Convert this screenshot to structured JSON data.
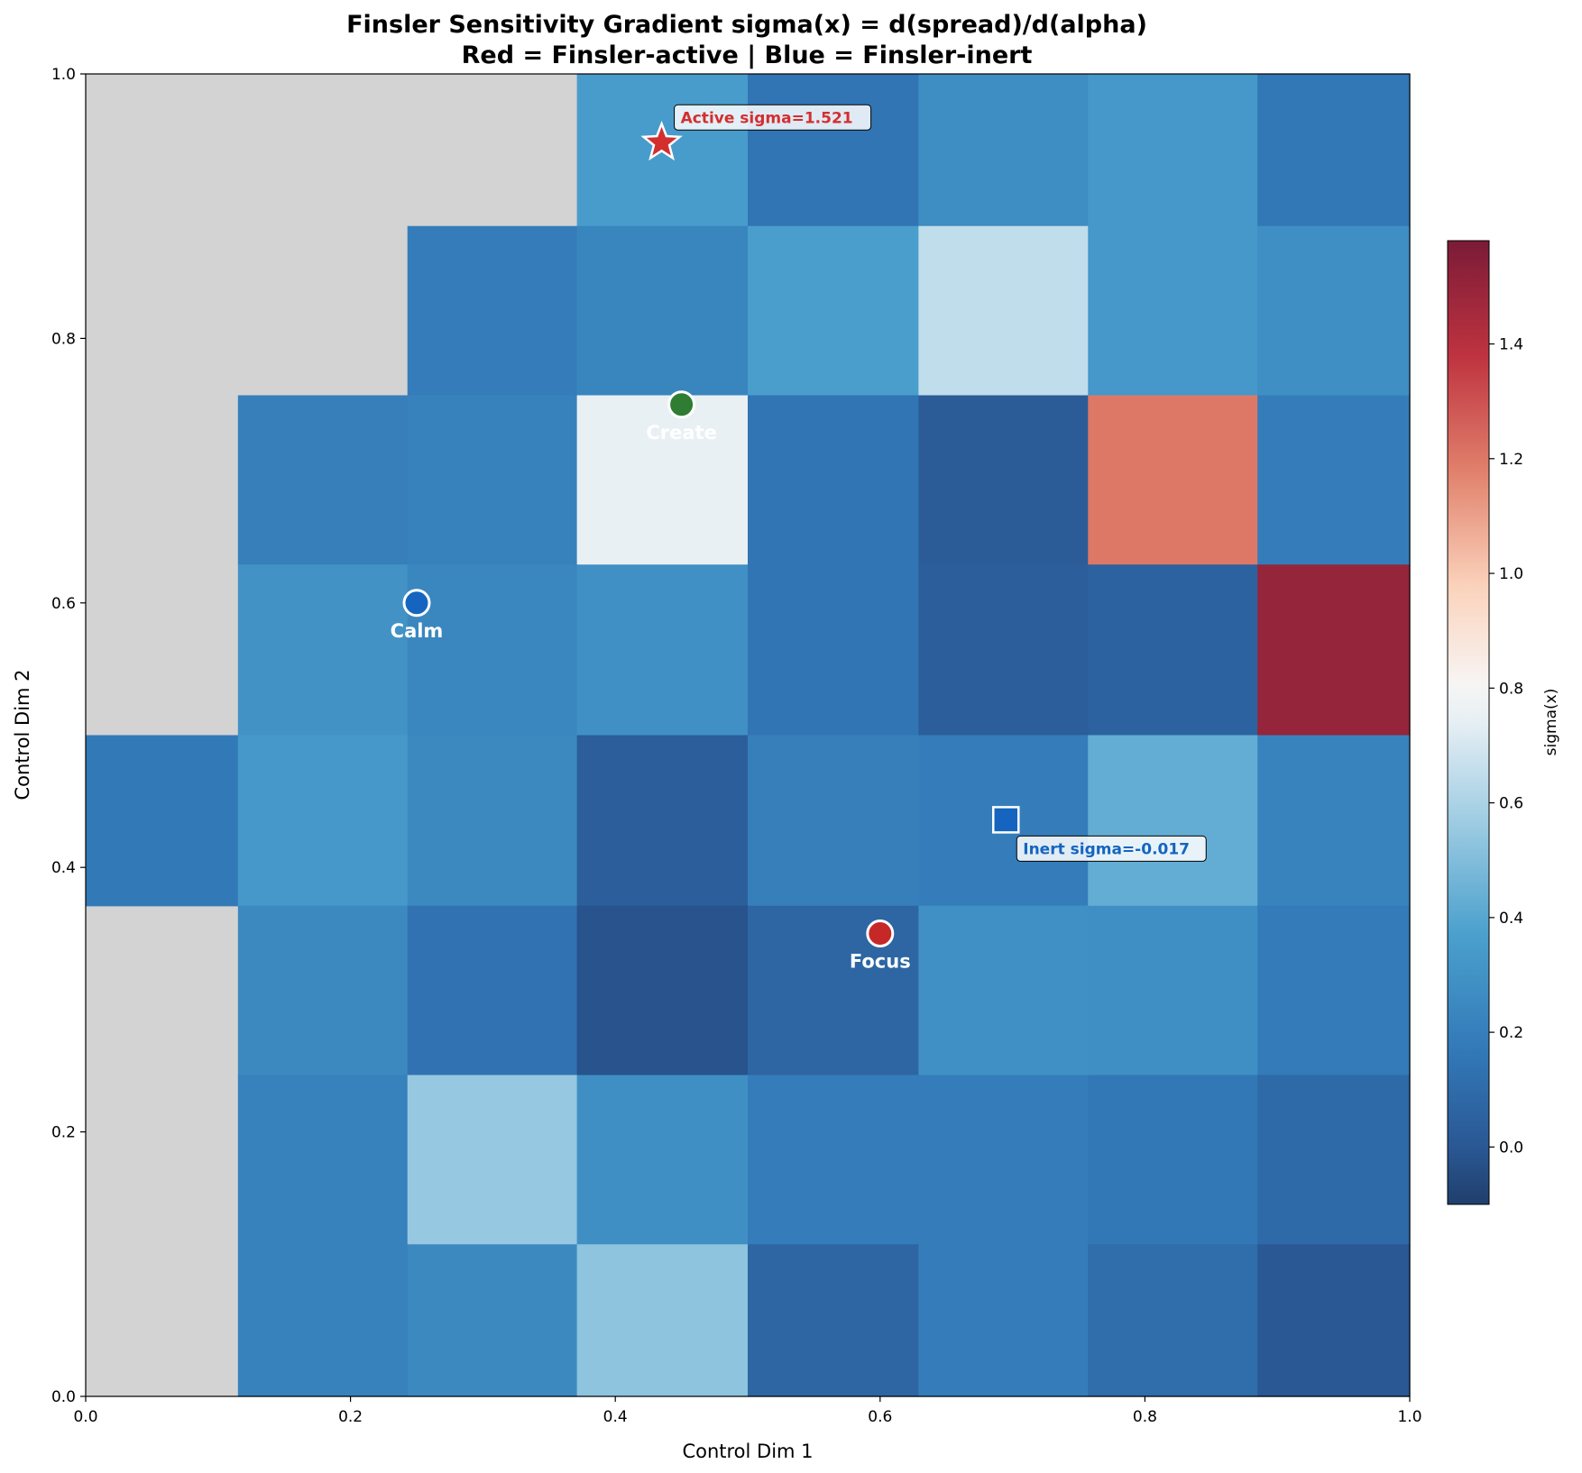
{
  "chart_data": {
    "type": "heatmap",
    "title_line1": "Finsler Sensitivity Gradient sigma(x) = d(spread)/d(alpha)",
    "title_line2": "Red = Finsler-active | Blue = Finsler-inert",
    "xlabel": "Control Dim 1",
    "ylabel": "Control Dim 2",
    "xlim": [
      0.0,
      1.0
    ],
    "ylim": [
      0.0,
      1.0
    ],
    "x_ticks": [
      "0.0",
      "0.2",
      "0.4",
      "0.6",
      "0.8",
      "1.0"
    ],
    "y_ticks": [
      "0.0",
      "0.2",
      "0.4",
      "0.6",
      "0.8",
      "1.0"
    ],
    "x_edges": [
      0.0,
      0.115,
      0.243,
      0.371,
      0.5,
      0.629,
      0.757,
      0.885,
      1.0
    ],
    "y_edges": [
      0.0,
      0.115,
      0.243,
      0.371,
      0.5,
      0.629,
      0.757,
      0.885,
      1.0
    ],
    "grid": [
      [
        null,
        null,
        null,
        0.35,
        0.15,
        0.27,
        0.33,
        0.16
      ],
      [
        null,
        null,
        0.19,
        0.23,
        0.36,
        0.65,
        0.33,
        0.28
      ],
      [
        null,
        0.2,
        0.21,
        0.75,
        0.15,
        0.02,
        1.2,
        0.19
      ],
      [
        null,
        0.3,
        0.24,
        0.29,
        0.15,
        0.03,
        0.05,
        1.5
      ],
      [
        0.17,
        0.33,
        0.25,
        0.03,
        0.2,
        0.19,
        0.43,
        0.22
      ],
      [
        null,
        0.25,
        0.14,
        -0.02,
        0.07,
        0.29,
        0.28,
        0.18
      ],
      [
        null,
        0.21,
        0.55,
        0.28,
        0.19,
        0.19,
        0.16,
        0.09
      ],
      [
        null,
        0.21,
        0.25,
        0.53,
        0.07,
        0.19,
        0.11,
        0.0
      ]
    ],
    "nan_color": "#d3d3d3",
    "colorbar": {
      "label": "sigma(x)",
      "vmin": -0.1,
      "vmax": 1.58,
      "ticks": [
        "0.0",
        "0.2",
        "0.4",
        "0.6",
        "0.8",
        "1.0",
        "1.2",
        "1.4"
      ],
      "tick_values": [
        0.0,
        0.2,
        0.4,
        0.6,
        0.8,
        1.0,
        1.2,
        1.4
      ]
    },
    "markers": [
      {
        "label": "Create",
        "x": 0.45,
        "y": 0.75,
        "color": "#2e7d32"
      },
      {
        "label": "Calm",
        "x": 0.25,
        "y": 0.6,
        "color": "#1565c0"
      },
      {
        "label": "Focus",
        "x": 0.6,
        "y": 0.35,
        "color": "#c62828"
      }
    ],
    "active_point": {
      "x": 0.435,
      "y": 0.948,
      "label": "Active sigma=1.521",
      "color": "#d32f2f"
    },
    "inert_point": {
      "x": 0.695,
      "y": 0.436,
      "label": "Inert sigma=-0.017",
      "color": "#1565c0"
    }
  }
}
